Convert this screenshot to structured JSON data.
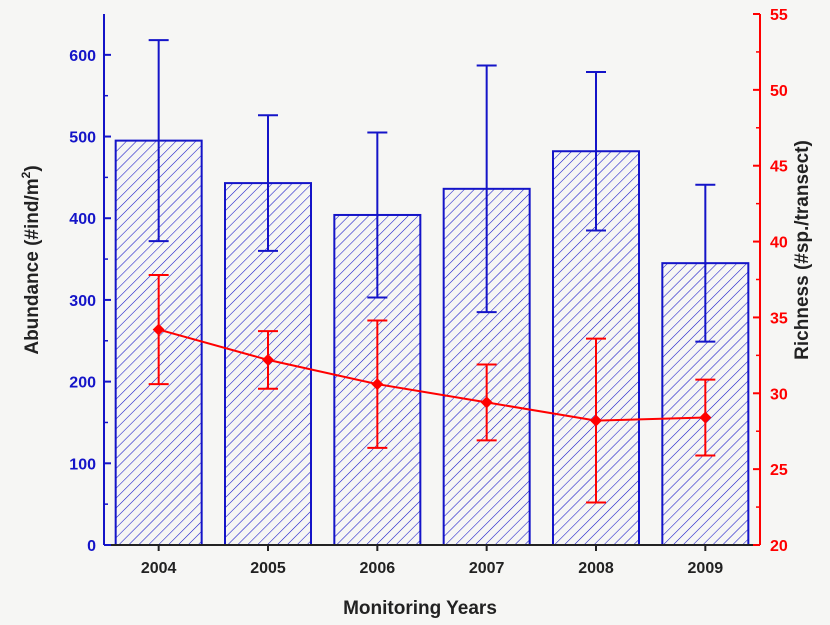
{
  "chart_data": {
    "type": "bar",
    "categories": [
      "2004",
      "2005",
      "2006",
      "2007",
      "2008",
      "2009"
    ],
    "xlabel": "Monitoring Years",
    "ylabel_left": "Abundance (#ind/m",
    "ylabel_left_sup": "2",
    "ylabel_left_end": ")",
    "ylabel_right": "Richness (#sp./transect)",
    "ylim_left": [
      0,
      650
    ],
    "ylim_right": [
      20,
      55
    ],
    "yticks_left": [
      0,
      100,
      200,
      300,
      400,
      500,
      600
    ],
    "yticks_right": [
      20,
      25,
      30,
      35,
      40,
      45,
      50,
      55
    ],
    "series": [
      {
        "axis": "left",
        "kind": "bar",
        "values": [
          495,
          443,
          404,
          436,
          482,
          345
        ],
        "error": [
          123,
          83,
          101,
          151,
          97,
          96
        ],
        "color": "#1414c8",
        "fill": "diagonal-hatch"
      },
      {
        "axis": "right",
        "kind": "line",
        "values": [
          34.2,
          32.2,
          30.6,
          29.4,
          28.2,
          28.4
        ],
        "error": [
          3.6,
          1.9,
          4.2,
          2.5,
          5.4,
          2.5
        ],
        "color": "#ff0000",
        "marker": "diamond"
      }
    ],
    "grid": false,
    "legend": "none"
  }
}
